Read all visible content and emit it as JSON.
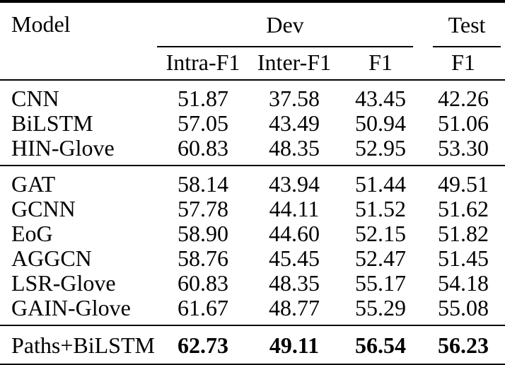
{
  "table": {
    "header": {
      "model": "Model",
      "dev_group": "Dev",
      "test_group": "Test",
      "sub": {
        "intra": "Intra-F1",
        "inter": "Inter-F1",
        "f1": "F1",
        "test_f1": "F1"
      }
    },
    "groups": [
      {
        "name": "baseline-models",
        "rows": [
          {
            "model": "CNN",
            "intra": "51.87",
            "inter": "37.58",
            "f1": "43.45",
            "test_f1": "42.26"
          },
          {
            "model": "BiLSTM",
            "intra": "57.05",
            "inter": "43.49",
            "f1": "50.94",
            "test_f1": "51.06"
          },
          {
            "model": "HIN-Glove",
            "intra": "60.83",
            "inter": "48.35",
            "f1": "52.95",
            "test_f1": "53.30"
          }
        ]
      },
      {
        "name": "graph-models",
        "rows": [
          {
            "model": "GAT",
            "intra": "58.14",
            "inter": "43.94",
            "f1": "51.44",
            "test_f1": "49.51"
          },
          {
            "model": "GCNN",
            "intra": "57.78",
            "inter": "44.11",
            "f1": "51.52",
            "test_f1": "51.62"
          },
          {
            "model": "EoG",
            "intra": "58.90",
            "inter": "44.60",
            "f1": "52.15",
            "test_f1": "51.82"
          },
          {
            "model": "AGGCN",
            "intra": "58.76",
            "inter": "45.45",
            "f1": "52.47",
            "test_f1": "51.45"
          },
          {
            "model": "LSR-Glove",
            "intra": "60.83",
            "inter": "48.35",
            "f1": "55.17",
            "test_f1": "54.18"
          },
          {
            "model": "GAIN-Glove",
            "intra": "61.67",
            "inter": "48.77",
            "f1": "55.29",
            "test_f1": "55.08"
          }
        ]
      },
      {
        "name": "proposed-model",
        "rows": [
          {
            "model": "Paths+BiLSTM",
            "intra": "62.73",
            "inter": "49.11",
            "f1": "56.54",
            "test_f1": "56.23"
          }
        ]
      }
    ],
    "colors": {
      "text": "#000000",
      "background": "#ffffff",
      "rule": "#000000"
    }
  }
}
